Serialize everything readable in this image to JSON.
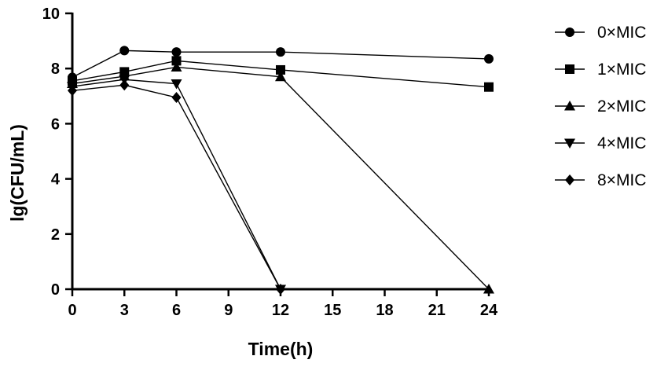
{
  "chart_data": {
    "type": "line",
    "title": "",
    "xlabel": "Time(h)",
    "ylabel": "lg(CFU/mL)",
    "xlim": [
      0,
      24
    ],
    "ylim": [
      0,
      10
    ],
    "xticks": [
      0,
      3,
      6,
      9,
      12,
      15,
      18,
      21,
      24
    ],
    "yticks": [
      0,
      2,
      4,
      6,
      8,
      10
    ],
    "grid": false,
    "legend_position": "right",
    "series": [
      {
        "name": "0×MIC",
        "marker": "circle",
        "points": [
          [
            0,
            7.68
          ],
          [
            3,
            8.65
          ],
          [
            6,
            8.6
          ],
          [
            12,
            8.6
          ],
          [
            24,
            8.35
          ]
        ]
      },
      {
        "name": "1×MIC",
        "marker": "square",
        "points": [
          [
            0,
            7.55
          ],
          [
            3,
            7.88
          ],
          [
            6,
            8.28
          ],
          [
            12,
            7.95
          ],
          [
            24,
            7.33
          ]
        ]
      },
      {
        "name": "2×MIC",
        "marker": "triangle-up",
        "points": [
          [
            0,
            7.45
          ],
          [
            3,
            7.72
          ],
          [
            6,
            8.05
          ],
          [
            12,
            7.7
          ],
          [
            24,
            0.0
          ]
        ]
      },
      {
        "name": "4×MIC",
        "marker": "triangle-down",
        "points": [
          [
            0,
            7.35
          ],
          [
            3,
            7.6
          ],
          [
            6,
            7.45
          ],
          [
            12,
            0.0
          ]
        ]
      },
      {
        "name": "8×MIC",
        "marker": "diamond",
        "points": [
          [
            0,
            7.2
          ],
          [
            3,
            7.4
          ],
          [
            6,
            6.95
          ],
          [
            12,
            0.0
          ]
        ]
      }
    ]
  }
}
